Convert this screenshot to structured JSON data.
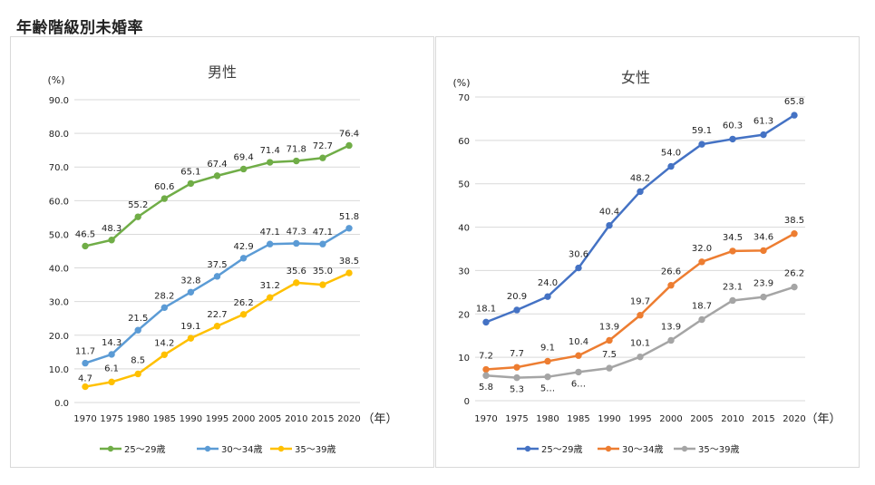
{
  "page_title": "年齢階級別未婚率",
  "colors": {
    "male_25_29": "#70ad47",
    "male_30_34": "#5b9bd5",
    "male_35_39": "#ffc000",
    "female_25_29": "#4472c4",
    "female_30_34": "#ed7d31",
    "female_35_39": "#a5a5a5",
    "grid": "#d9d9d9"
  },
  "chart_data": [
    {
      "type": "line",
      "title": "男性",
      "ylabel": "(%)",
      "xlabel": "（年）",
      "ylim": [
        0,
        90
      ],
      "yticks": [
        "0.0",
        "10.0",
        "20.0",
        "30.0",
        "40.0",
        "50.0",
        "60.0",
        "70.0",
        "80.0",
        "90.0"
      ],
      "categories": [
        "1970",
        "1975",
        "1980",
        "1985",
        "1990",
        "1995",
        "2000",
        "2005",
        "2010",
        "2015",
        "2020"
      ],
      "legend": "bottom",
      "series": [
        {
          "name": "25～29歳",
          "color_key": "male_25_29",
          "values": [
            46.5,
            48.3,
            55.2,
            60.6,
            65.1,
            67.4,
            69.4,
            71.4,
            71.8,
            72.7,
            76.4
          ],
          "labels": [
            "46.5",
            "48.3",
            "55.2",
            "60.6",
            "65.1",
            "67.4",
            "69.4",
            "71.4",
            "71.8",
            "72.7",
            "76.4"
          ]
        },
        {
          "name": "30～34歳",
          "color_key": "male_30_34",
          "values": [
            11.7,
            14.3,
            21.5,
            28.2,
            32.8,
            37.5,
            42.9,
            47.1,
            47.3,
            47.1,
            51.8
          ],
          "labels": [
            "11.7",
            "14.3",
            "21.5",
            "28.2",
            "32.8",
            "37.5",
            "42.9",
            "47.1",
            "47.3",
            "47.1",
            "51.8"
          ]
        },
        {
          "name": "35～39歳",
          "color_key": "male_35_39",
          "values": [
            4.7,
            6.1,
            8.5,
            14.2,
            19.1,
            22.7,
            26.2,
            31.2,
            35.6,
            35.0,
            38.5
          ],
          "labels": [
            "4.7",
            "6.1",
            "8.5",
            "14.2",
            "19.1",
            "22.7",
            "26.2",
            "31.2",
            "35.6",
            "35.0",
            "38.5"
          ]
        }
      ]
    },
    {
      "type": "line",
      "title": "女性",
      "ylabel": "(%)",
      "xlabel": "（年）",
      "ylim": [
        0,
        70
      ],
      "yticks": [
        "0",
        "10",
        "20",
        "30",
        "40",
        "50",
        "60",
        "70"
      ],
      "categories": [
        "1970",
        "1975",
        "1980",
        "1985",
        "1990",
        "1995",
        "2000",
        "2005",
        "2010",
        "2015",
        "2020"
      ],
      "legend": "bottom",
      "series": [
        {
          "name": "25～29歳",
          "color_key": "female_25_29",
          "values": [
            18.1,
            20.9,
            24.0,
            30.6,
            40.4,
            48.2,
            54.0,
            59.1,
            60.3,
            61.3,
            65.8
          ],
          "labels": [
            "18.1",
            "20.9",
            "24.0",
            "30.6",
            "40.4",
            "48.2",
            "54.0",
            "59.1",
            "60.3",
            "61.3",
            "65.8"
          ]
        },
        {
          "name": "30～34歳",
          "color_key": "female_30_34",
          "values": [
            7.2,
            7.7,
            9.1,
            10.4,
            13.9,
            19.7,
            26.6,
            32.0,
            34.5,
            34.6,
            38.5
          ],
          "labels": [
            "7.2",
            "7.7",
            "9.1",
            "10.4",
            "13.9",
            "19.7",
            "26.6",
            "32.0",
            "34.5",
            "34.6",
            "38.5"
          ]
        },
        {
          "name": "35～39歳",
          "color_key": "female_35_39",
          "values": [
            5.8,
            5.3,
            5.5,
            6.6,
            7.5,
            10.1,
            13.9,
            18.7,
            23.1,
            23.9,
            26.2
          ],
          "labels": [
            "5.8",
            "5.3",
            "5…",
            "6…",
            "7.5",
            "10.1",
            "13.9",
            "18.7",
            "23.1",
            "23.9",
            "26.2"
          ]
        }
      ]
    }
  ]
}
